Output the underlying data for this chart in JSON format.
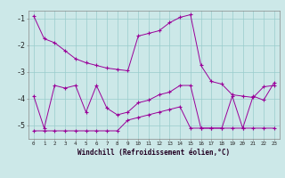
{
  "xlabel": "Windchill (Refroidissement éolien,°C)",
  "background_color": "#cce8e8",
  "line_color": "#990099",
  "grid_color": "#99cccc",
  "xlim": [
    -0.5,
    23.5
  ],
  "ylim": [
    -5.5,
    -0.7
  ],
  "yticks": [
    -5,
    -4,
    -3,
    -2,
    -1
  ],
  "xticks": [
    0,
    1,
    2,
    3,
    4,
    5,
    6,
    7,
    8,
    9,
    10,
    11,
    12,
    13,
    14,
    15,
    16,
    17,
    18,
    19,
    20,
    21,
    22,
    23
  ],
  "line1_x": [
    0,
    1,
    2,
    3,
    4,
    5,
    6,
    7,
    8,
    9,
    10,
    11,
    12,
    13,
    14,
    15,
    16,
    17,
    18,
    19,
    20,
    21,
    22,
    23
  ],
  "line1_y": [
    -0.9,
    -1.75,
    -1.9,
    -2.2,
    -2.5,
    -2.65,
    -2.75,
    -2.85,
    -2.9,
    -2.95,
    -1.65,
    -1.55,
    -1.45,
    -1.15,
    -0.95,
    -0.85,
    -2.75,
    -3.35,
    -3.45,
    -3.85,
    -3.9,
    -3.95,
    -3.55,
    -3.5
  ],
  "line2_x": [
    0,
    1,
    2,
    3,
    4,
    5,
    6,
    7,
    8,
    9,
    10,
    11,
    12,
    13,
    14,
    15,
    16,
    17,
    18,
    19,
    20,
    21,
    22,
    23
  ],
  "line2_y": [
    -3.9,
    -5.1,
    -3.5,
    -3.6,
    -3.5,
    -4.5,
    -3.5,
    -4.35,
    -4.6,
    -4.5,
    -4.15,
    -4.05,
    -3.85,
    -3.75,
    -3.5,
    -3.5,
    -5.1,
    -5.1,
    -5.1,
    -3.9,
    -5.1,
    -3.9,
    -4.05,
    -3.4
  ],
  "line3_x": [
    0,
    1,
    2,
    3,
    4,
    5,
    6,
    7,
    8,
    9,
    10,
    11,
    12,
    13,
    14,
    15,
    16,
    17,
    18,
    19,
    20,
    21,
    22,
    23
  ],
  "line3_y": [
    -5.2,
    -5.2,
    -5.2,
    -5.2,
    -5.2,
    -5.2,
    -5.2,
    -5.2,
    -5.2,
    -4.8,
    -4.7,
    -4.6,
    -4.5,
    -4.4,
    -4.3,
    -5.1,
    -5.1,
    -5.1,
    -5.1,
    -5.1,
    -5.1,
    -5.1,
    -5.1,
    -5.1
  ]
}
